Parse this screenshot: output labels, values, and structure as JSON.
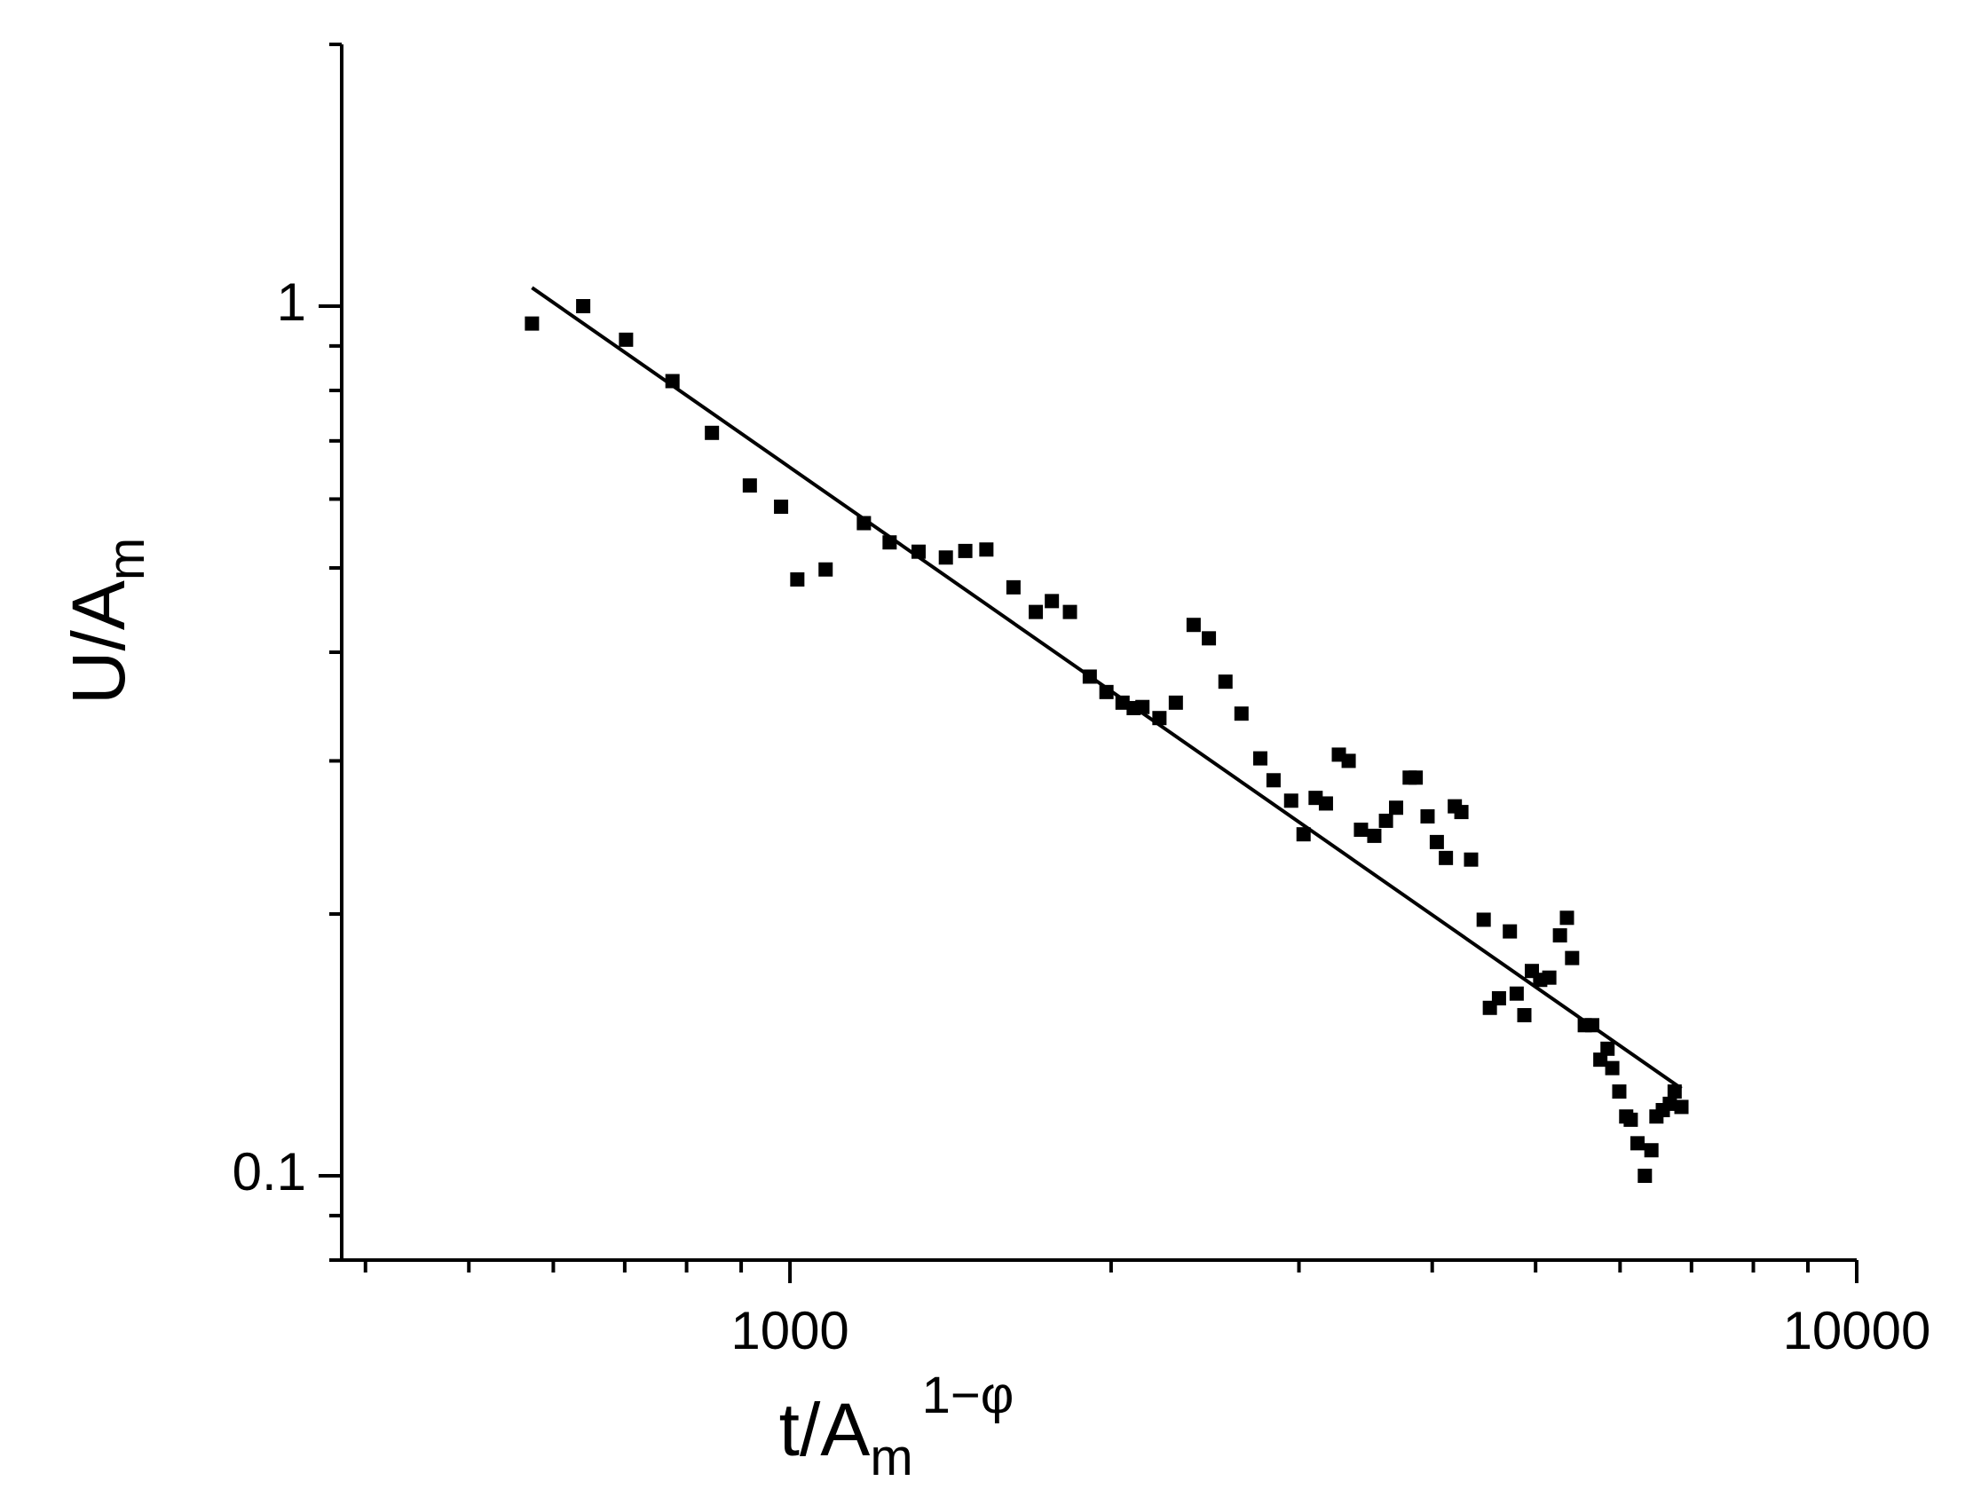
{
  "chart_data": {
    "type": "scatter",
    "title": "",
    "xlabel": {
      "base": "t/A",
      "sub": "m",
      "sup": "1−φ"
    },
    "ylabel": {
      "base": "U/A",
      "sub": "m"
    },
    "xscale": "log",
    "yscale": "log",
    "xlim": [
      380,
      10000
    ],
    "ylim": [
      0.08,
      2.0
    ],
    "x_tick_labels": [
      {
        "value": 1000,
        "label": "1000"
      },
      {
        "value": 10000,
        "label": "10000"
      }
    ],
    "y_tick_labels": [
      {
        "value": 0.1,
        "label": "0.1"
      },
      {
        "value": 1,
        "label": "1"
      }
    ],
    "grid": false,
    "legend": "none",
    "colors": {
      "points": "#000000",
      "fit_line": "#000000"
    },
    "series": [
      {
        "kind": "scatter",
        "marker": "square",
        "points": [
          [
            573,
            0.955
          ],
          [
            640,
            1.0
          ],
          [
            702,
            0.915
          ],
          [
            776,
            0.82
          ],
          [
            845,
            0.715
          ],
          [
            917,
            0.622
          ],
          [
            981,
            0.588
          ],
          [
            1016,
            0.485
          ],
          [
            1080,
            0.498
          ],
          [
            1173,
            0.563
          ],
          [
            1240,
            0.535
          ],
          [
            1320,
            0.522
          ],
          [
            1400,
            0.514
          ],
          [
            1460,
            0.523
          ],
          [
            1528,
            0.525
          ],
          [
            1620,
            0.475
          ],
          [
            1700,
            0.445
          ],
          [
            1760,
            0.458
          ],
          [
            1830,
            0.445
          ],
          [
            1910,
            0.375
          ],
          [
            1980,
            0.36
          ],
          [
            2050,
            0.35
          ],
          [
            2100,
            0.345
          ],
          [
            2140,
            0.346
          ],
          [
            2220,
            0.336
          ],
          [
            2300,
            0.35
          ],
          [
            2390,
            0.43
          ],
          [
            2470,
            0.415
          ],
          [
            2560,
            0.37
          ],
          [
            2650,
            0.34
          ],
          [
            2760,
            0.302
          ],
          [
            2840,
            0.285
          ],
          [
            2950,
            0.27
          ],
          [
            3030,
            0.247
          ],
          [
            3110,
            0.272
          ],
          [
            3180,
            0.268
          ],
          [
            3270,
            0.305
          ],
          [
            3340,
            0.3
          ],
          [
            3430,
            0.25
          ],
          [
            3530,
            0.246
          ],
          [
            3620,
            0.256
          ],
          [
            3700,
            0.265
          ],
          [
            3810,
            0.287
          ],
          [
            3860,
            0.287
          ],
          [
            3960,
            0.259
          ],
          [
            4040,
            0.242
          ],
          [
            4120,
            0.232
          ],
          [
            4200,
            0.266
          ],
          [
            4260,
            0.262
          ],
          [
            4350,
            0.231
          ],
          [
            4470,
            0.197
          ],
          [
            4530,
            0.156
          ],
          [
            4620,
            0.16
          ],
          [
            4730,
            0.191
          ],
          [
            4800,
            0.162
          ],
          [
            4880,
            0.153
          ],
          [
            4960,
            0.172
          ],
          [
            5050,
            0.168
          ],
          [
            5150,
            0.169
          ],
          [
            5270,
            0.189
          ],
          [
            5350,
            0.198
          ],
          [
            5410,
            0.178
          ],
          [
            5560,
            0.149
          ],
          [
            5650,
            0.149
          ],
          [
            5750,
            0.136
          ],
          [
            5840,
            0.14
          ],
          [
            5900,
            0.133
          ],
          [
            5990,
            0.125
          ],
          [
            6080,
            0.117
          ],
          [
            6140,
            0.116
          ],
          [
            6230,
            0.109
          ],
          [
            6330,
            0.1
          ],
          [
            6420,
            0.107
          ],
          [
            6490,
            0.117
          ],
          [
            6580,
            0.119
          ],
          [
            6680,
            0.121
          ],
          [
            6750,
            0.125
          ],
          [
            6850,
            0.12
          ]
        ]
      },
      {
        "kind": "line",
        "points": [
          [
            573,
            1.05
          ],
          [
            6850,
            0.126
          ]
        ]
      }
    ]
  }
}
